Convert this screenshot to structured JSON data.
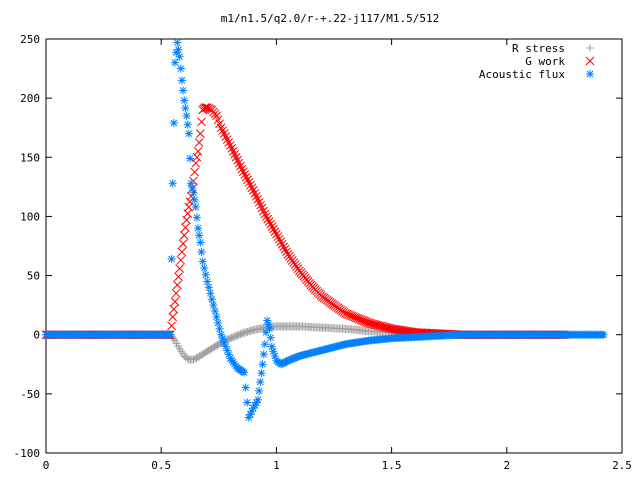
{
  "chart_data": {
    "type": "scatter",
    "title": "m1/n1.5/q2.0/r-+.22-j117/M1.5/512",
    "xlabel": "",
    "ylabel": "",
    "xlim": [
      0,
      2.5
    ],
    "ylim": [
      -100,
      250
    ],
    "xticks": [
      "0",
      "0.5",
      "1",
      "1.5",
      "2",
      "2.5"
    ],
    "yticks": [
      "250",
      "200",
      "150",
      "100",
      "50",
      "0",
      "-50",
      "-100"
    ],
    "grid": false,
    "legend_position": "top-right",
    "series": [
      {
        "name": "R stress",
        "marker": "plus",
        "color": "#a0a0a0",
        "x": [
          0.0,
          0.1,
          0.2,
          0.3,
          0.4,
          0.5,
          0.54,
          0.56,
          0.58,
          0.6,
          0.62,
          0.64,
          0.66,
          0.7,
          0.75,
          0.8,
          0.85,
          0.9,
          0.95,
          1.0,
          1.05,
          1.1,
          1.2,
          1.3,
          1.4,
          1.5,
          1.6,
          1.7,
          1.8,
          2.0,
          2.2,
          2.25
        ],
        "y": [
          0,
          0,
          0,
          0,
          0,
          0,
          0,
          -5,
          -12,
          -18,
          -21,
          -21,
          -19,
          -14,
          -8,
          -3,
          1,
          4,
          6,
          7,
          7,
          7,
          6,
          5,
          3,
          2,
          1,
          0.5,
          0,
          0,
          0,
          0
        ]
      },
      {
        "name": "G work",
        "marker": "x",
        "color": "#ff0000",
        "x": [
          0.0,
          0.2,
          0.4,
          0.54,
          0.55,
          0.56,
          0.57,
          0.58,
          0.59,
          0.6,
          0.61,
          0.62,
          0.63,
          0.64,
          0.65,
          0.66,
          0.67,
          0.68,
          0.69,
          0.7,
          0.72,
          0.74,
          0.76,
          0.8,
          0.85,
          0.9,
          0.95,
          1.0,
          1.05,
          1.1,
          1.15,
          1.2,
          1.3,
          1.4,
          1.5,
          1.6,
          1.7,
          1.8,
          2.0,
          2.2,
          2.25
        ],
        "y": [
          0,
          0,
          0,
          0,
          15,
          28,
          42,
          56,
          70,
          84,
          97,
          108,
          117,
          130,
          145,
          155,
          170,
          190,
          192,
          192,
          190,
          185,
          175,
          160,
          140,
          122,
          102,
          85,
          68,
          54,
          42,
          32,
          18,
          10,
          5,
          2,
          1,
          0,
          0,
          0,
          0
        ]
      },
      {
        "name": "Acoustic flux",
        "marker": "star",
        "color": "#0080ff",
        "x": [
          0.0,
          0.1,
          0.2,
          0.3,
          0.4,
          0.5,
          0.54,
          0.55,
          0.56,
          0.57,
          0.58,
          0.59,
          0.6,
          0.61,
          0.62,
          0.63,
          0.64,
          0.65,
          0.66,
          0.67,
          0.68,
          0.7,
          0.72,
          0.74,
          0.76,
          0.78,
          0.8,
          0.83,
          0.86,
          0.88,
          0.9,
          0.92,
          0.93,
          0.94,
          0.95,
          0.96,
          0.97,
          0.98,
          1.0,
          1.02,
          1.05,
          1.1,
          1.2,
          1.3,
          1.4,
          1.5,
          1.6,
          1.7,
          1.8,
          2.0,
          2.2,
          2.42
        ],
        "y": [
          0,
          0,
          0,
          0,
          0,
          0,
          0,
          128,
          230,
          247,
          235,
          215,
          198,
          185,
          170,
          128,
          120,
          108,
          90,
          78,
          62,
          45,
          30,
          15,
          0,
          -10,
          -20,
          -28,
          -32,
          -70,
          -62,
          -55,
          -40,
          -25,
          -8,
          12,
          5,
          -10,
          -22,
          -25,
          -22,
          -18,
          -13,
          -8,
          -5,
          -3,
          -2,
          -1,
          0,
          0,
          0,
          0
        ]
      }
    ]
  }
}
